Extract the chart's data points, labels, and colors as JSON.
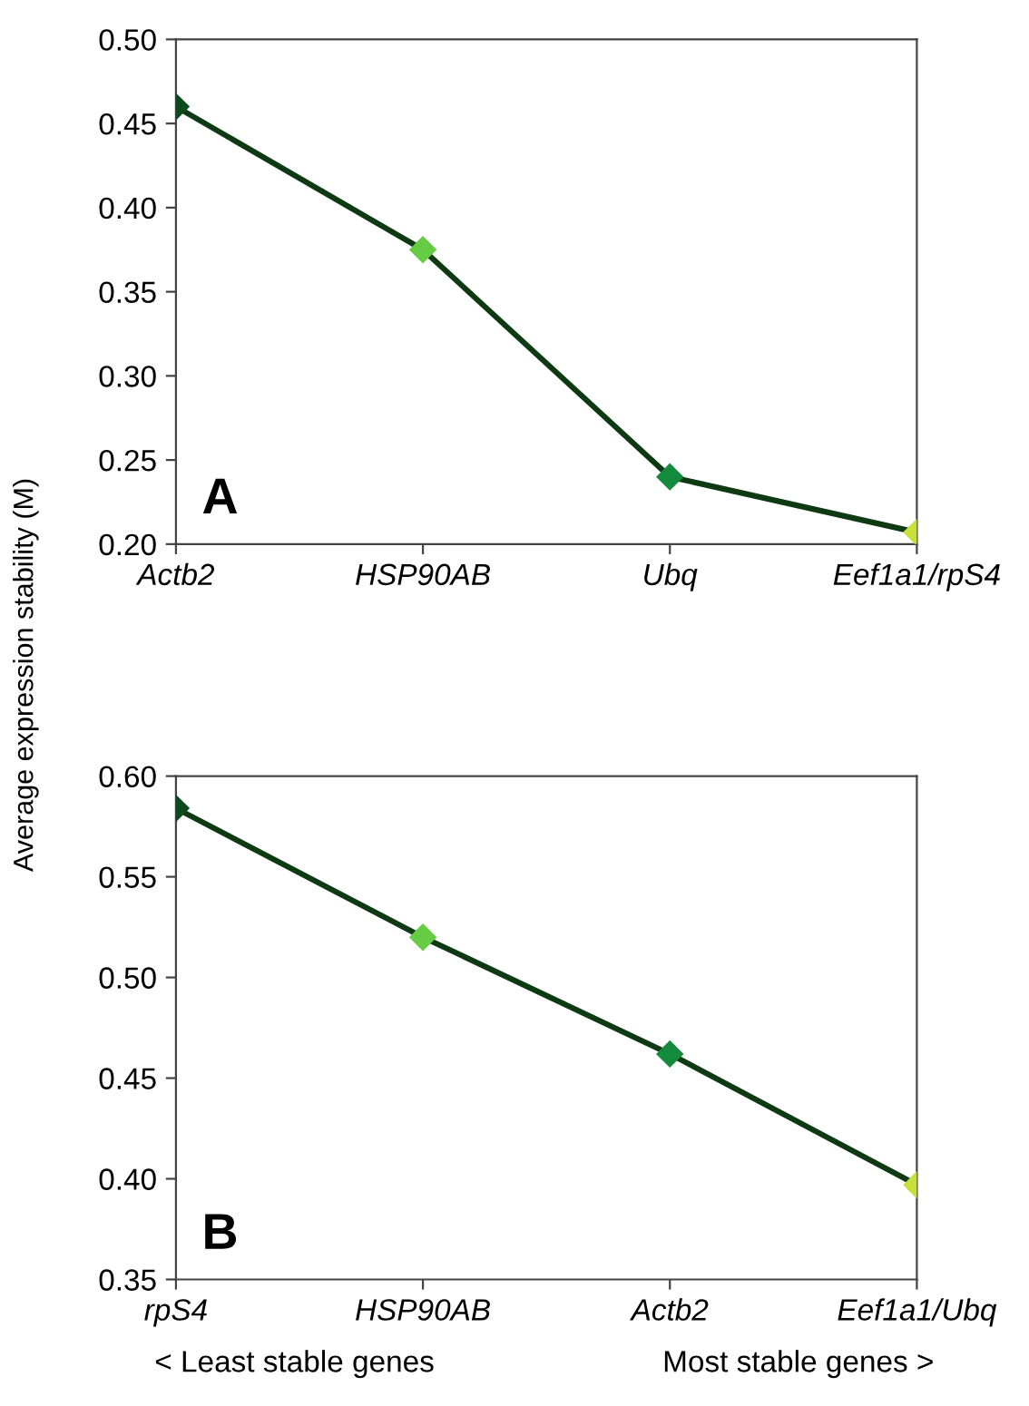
{
  "chart_data": [
    {
      "type": "line",
      "title": "A",
      "ylabel": "Average expression stability (M)",
      "categories": [
        "Actb2",
        "HSP90AB",
        "Ubq",
        "Eef1a1/rpS4"
      ],
      "series": [
        {
          "color": "#0d3a12",
          "values": [
            0.46,
            0.375,
            0.24,
            0.207
          ],
          "colors": [
            "#0b4a1c",
            "#66cc44",
            "#138a3c",
            "#c8e03a"
          ]
        }
      ],
      "ylim": [
        0.2,
        0.5
      ],
      "yticks": [
        {
          "value": 0.2,
          "label": "0.20"
        },
        {
          "value": 0.25,
          "label": "0.25"
        },
        {
          "value": 0.3,
          "label": "0.30"
        },
        {
          "value": 0.35,
          "label": "0.35"
        },
        {
          "value": 0.4,
          "label": "0.40"
        },
        {
          "value": 0.45,
          "label": "0.45"
        },
        {
          "value": 0.5,
          "label": "0.50"
        }
      ],
      "marker": "diamond",
      "grid": false,
      "legend": false
    },
    {
      "type": "line",
      "title": "B",
      "categories": [
        "rpS4",
        "HSP90AB",
        "Actb2",
        "Eef1a1/Ubq"
      ],
      "series": [
        {
          "color": "#0d3a12",
          "values": [
            0.584,
            0.52,
            0.462,
            0.397
          ],
          "colors": [
            "#0b4a1c",
            "#66cc44",
            "#138a3c",
            "#c8e03a"
          ]
        }
      ],
      "ylim": [
        0.35,
        0.6
      ],
      "yticks": [
        {
          "value": 0.35,
          "label": "0.35"
        },
        {
          "value": 0.4,
          "label": "0.40"
        },
        {
          "value": 0.45,
          "label": "0.45"
        },
        {
          "value": 0.5,
          "label": "0.50"
        },
        {
          "value": 0.55,
          "label": "0.55"
        },
        {
          "value": 0.6,
          "label": "0.60"
        }
      ],
      "marker": "diamond",
      "grid": false,
      "legend": false,
      "annotations": [
        "< Least stable genes",
        "Most stable genes >"
      ]
    }
  ]
}
